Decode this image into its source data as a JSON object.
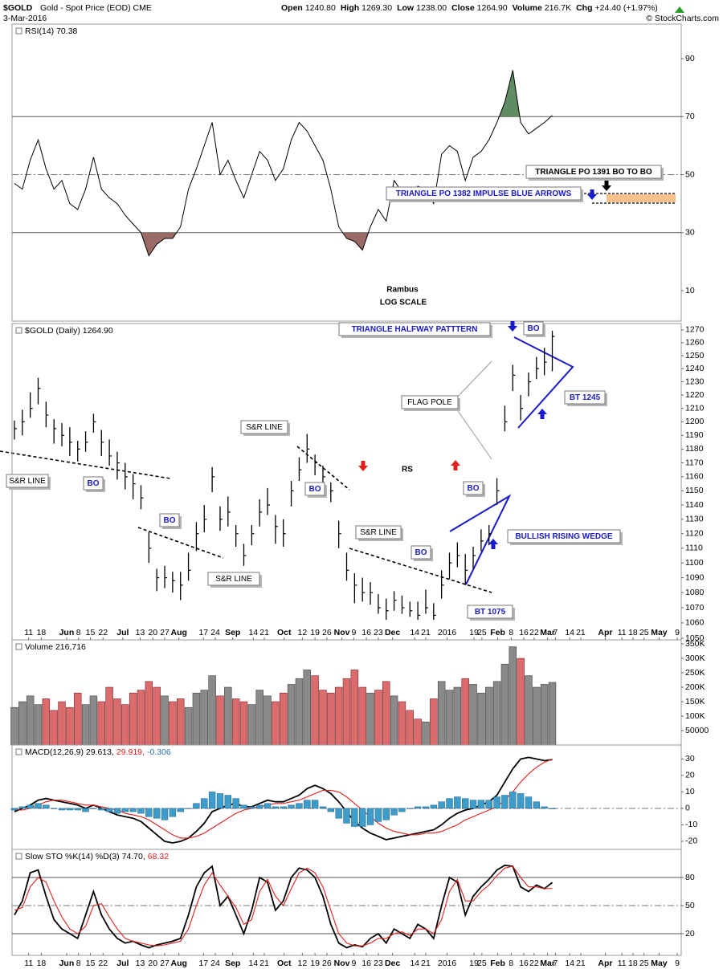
{
  "header": {
    "symbol": "$GOLD",
    "name": "Gold - Spot Price (EOD) CME",
    "date": "3-Mar-2016",
    "source": "© StockCharts.com",
    "quote": [
      {
        "label": "Open",
        "value": "1240.80"
      },
      {
        "label": "High",
        "value": "1269.30"
      },
      {
        "label": "Low",
        "value": "1238.00"
      },
      {
        "label": "Close",
        "value": "1264.90"
      },
      {
        "label": "Volume",
        "value": "216.7K"
      },
      {
        "label": "Chg",
        "value": "+24.40 (+1.97%)"
      }
    ]
  },
  "x_axis": {
    "xlim": [
      -0.3,
      84.3
    ],
    "xticks": [
      {
        "value": 1.8,
        "label": "11"
      },
      {
        "value": 3.4,
        "label": "18"
      },
      {
        "value": 6.6,
        "label": "Jun"
      },
      {
        "value": 8.1,
        "label": "8"
      },
      {
        "value": 9.6,
        "label": "15"
      },
      {
        "value": 11.2,
        "label": "22"
      },
      {
        "value": 13.7,
        "label": "Jul"
      },
      {
        "value": 15.9,
        "label": "13"
      },
      {
        "value": 17.5,
        "label": "20"
      },
      {
        "value": 19,
        "label": "27"
      },
      {
        "value": 20.8,
        "label": "Aug"
      },
      {
        "value": 23.9,
        "label": "17"
      },
      {
        "value": 25.4,
        "label": "24"
      },
      {
        "value": 27.6,
        "label": "Sep"
      },
      {
        "value": 30.2,
        "label": "14"
      },
      {
        "value": 31.6,
        "label": "21"
      },
      {
        "value": 34.1,
        "label": "Oct"
      },
      {
        "value": 36.4,
        "label": "12"
      },
      {
        "value": 38,
        "label": "19"
      },
      {
        "value": 39.5,
        "label": "26"
      },
      {
        "value": 41.4,
        "label": "Nov"
      },
      {
        "value": 42.9,
        "label": "9"
      },
      {
        "value": 44.5,
        "label": "16"
      },
      {
        "value": 46,
        "label": "23"
      },
      {
        "value": 47.8,
        "label": "Dec"
      },
      {
        "value": 50.6,
        "label": "14"
      },
      {
        "value": 52,
        "label": "21"
      },
      {
        "value": 54.7,
        "label": "2016"
      },
      {
        "value": 58.1,
        "label": "19"
      },
      {
        "value": 59.1,
        "label": "25"
      },
      {
        "value": 61.1,
        "label": "Feb"
      },
      {
        "value": 62.8,
        "label": "8"
      },
      {
        "value": 64.4,
        "label": "16"
      },
      {
        "value": 65.7,
        "label": "22"
      },
      {
        "value": 67.4,
        "label": "Mar"
      },
      {
        "value": 68.4,
        "label": "7"
      },
      {
        "value": 70.2,
        "label": "14"
      },
      {
        "value": 71.6,
        "label": "21"
      },
      {
        "value": 74.7,
        "label": "Apr"
      },
      {
        "value": 76.8,
        "label": "11"
      },
      {
        "value": 78.2,
        "label": "18"
      },
      {
        "value": 79.6,
        "label": "25"
      },
      {
        "value": 81.5,
        "label": "May"
      },
      {
        "value": 83.8,
        "label": "9"
      }
    ]
  },
  "chart_data": [
    {
      "type": "line",
      "label": "RSI(14) 70.38",
      "ylim": [
        -0.5,
        101.9
      ],
      "yticks": [
        10,
        30,
        50,
        70,
        90
      ],
      "grid_styles": [
        "none",
        "solid",
        "dashed",
        "solid",
        "none"
      ],
      "overbought": 70,
      "oversold": 30,
      "overbought_color": "#5f8c62",
      "oversold_color": "#9a6a66",
      "series": [
        {
          "color": "#000000",
          "values": [
            47,
            45,
            55,
            62,
            52,
            45,
            48,
            40,
            38,
            45,
            56,
            45,
            42,
            40,
            36,
            33,
            30,
            22,
            26,
            28,
            28,
            32,
            45,
            52,
            60,
            68,
            50,
            55,
            48,
            42,
            50,
            58,
            55,
            48,
            52,
            62,
            68,
            65,
            60,
            55,
            45,
            32,
            28,
            27,
            24,
            32,
            38,
            34,
            48,
            44,
            42,
            46,
            45,
            40,
            57,
            60,
            58,
            48,
            56,
            58,
            62,
            68,
            75,
            86,
            68,
            64,
            66,
            68,
            70.38
          ]
        }
      ],
      "annotations": [
        "Rambus",
        "LOG SCALE",
        "TRIANGLE PO 1391 BO TO BO",
        "TRIANGLE PO 1382 IMPULSE BLUE ARROWS"
      ]
    },
    {
      "type": "ohlc",
      "label": "$GOLD (Daily) 1264.90",
      "log": true,
      "ylim": [
        1049,
        1275
      ],
      "yticks": [
        1050,
        1060,
        1070,
        1080,
        1090,
        1100,
        1110,
        1120,
        1130,
        1140,
        1150,
        1160,
        1170,
        1180,
        1190,
        1200,
        1210,
        1220,
        1230,
        1240,
        1250,
        1260,
        1270
      ],
      "color": "#000000",
      "high": [
        1201,
        1209,
        1222,
        1233,
        1215,
        1202,
        1199,
        1196,
        1186,
        1193,
        1206,
        1194,
        1187,
        1178,
        1170,
        1162,
        1154,
        1121,
        1096,
        1098,
        1094,
        1094,
        1107,
        1128,
        1140,
        1167,
        1139,
        1146,
        1126,
        1113,
        1126,
        1144,
        1152,
        1133,
        1130,
        1157,
        1174,
        1191,
        1176,
        1168,
        1156,
        1129,
        1107,
        1093,
        1090,
        1087,
        1079,
        1076,
        1081,
        1078,
        1074,
        1074,
        1082,
        1073,
        1095,
        1107,
        1114,
        1106,
        1111,
        1123,
        1126,
        1159,
        1212,
        1243,
        1220,
        1237,
        1249,
        1256,
        1269.3
      ],
      "low": [
        1187,
        1190,
        1203,
        1213,
        1196,
        1184,
        1182,
        1175,
        1171,
        1178,
        1192,
        1175,
        1168,
        1158,
        1151,
        1144,
        1137,
        1100,
        1081,
        1083,
        1080,
        1075,
        1088,
        1108,
        1121,
        1149,
        1122,
        1125,
        1111,
        1098,
        1112,
        1125,
        1133,
        1113,
        1111,
        1139,
        1157,
        1170,
        1161,
        1153,
        1142,
        1110,
        1088,
        1073,
        1074,
        1072,
        1066,
        1062,
        1068,
        1066,
        1064,
        1062,
        1066,
        1062,
        1076,
        1089,
        1097,
        1085,
        1096,
        1108,
        1112,
        1140,
        1193,
        1223,
        1201,
        1219,
        1232,
        1235,
        1238
      ],
      "close": [
        1195,
        1200,
        1210,
        1225,
        1205,
        1195,
        1190,
        1185,
        1180,
        1185,
        1200,
        1185,
        1175,
        1170,
        1160,
        1155,
        1145,
        1110,
        1090,
        1090,
        1088,
        1085,
        1095,
        1120,
        1130,
        1160,
        1130,
        1135,
        1120,
        1105,
        1120,
        1135,
        1140,
        1125,
        1120,
        1150,
        1165,
        1180,
        1170,
        1160,
        1150,
        1120,
        1095,
        1085,
        1080,
        1080,
        1070,
        1068,
        1075,
        1070,
        1068,
        1065,
        1070,
        1065,
        1085,
        1100,
        1105,
        1095,
        1105,
        1115,
        1120,
        1150,
        1200,
        1235,
        1210,
        1230,
        1240,
        1245,
        1264.9
      ],
      "annotations": [
        "S&R LINE",
        "S&R LINE",
        "S&R LINE",
        "S&R LINE",
        "BO",
        "BO",
        "BO",
        "BO",
        "BO",
        "BO",
        "RS",
        "FLAG POLE",
        "TRIANGLE HALFWAY PATTTERN",
        "BT 1245",
        "BULLISH RISING WEDGE",
        "BT 1075"
      ]
    },
    {
      "type": "bar",
      "label": "Volume 216,716",
      "ylim": [
        0,
        364000
      ],
      "yticks": [
        {
          "value": 350000,
          "label": "350K"
        },
        {
          "value": 300000,
          "label": "300K"
        },
        {
          "value": 250000,
          "label": "250K"
        },
        {
          "value": 200000,
          "label": "200K"
        },
        {
          "value": 150000,
          "label": "150K"
        },
        {
          "value": 100000,
          "label": "100K"
        },
        50000
      ],
      "up_color": "#8a8a8a",
      "down_color": "#dc6b6e",
      "values": [
        130000,
        150000,
        170000,
        140000,
        160000,
        120000,
        150000,
        130000,
        180000,
        140000,
        170000,
        150000,
        200000,
        160000,
        140000,
        180000,
        190000,
        220000,
        200000,
        170000,
        150000,
        160000,
        130000,
        180000,
        190000,
        240000,
        170000,
        200000,
        160000,
        150000,
        140000,
        190000,
        170000,
        150000,
        180000,
        210000,
        230000,
        260000,
        240000,
        190000,
        180000,
        200000,
        230000,
        260000,
        200000,
        180000,
        190000,
        220000,
        170000,
        150000,
        120000,
        90000,
        80000,
        160000,
        220000,
        190000,
        200000,
        230000,
        210000,
        180000,
        200000,
        220000,
        280000,
        340000,
        300000,
        240000,
        200000,
        210000,
        216716
      ]
    },
    {
      "type": "line",
      "ylim": [
        -24.9,
        38.5
      ],
      "yticks": [
        30,
        20,
        10,
        0,
        -10,
        -20
      ],
      "grid_styles": [
        "none",
        "none",
        "none",
        "dashed",
        "none",
        "none"
      ],
      "series": [
        {
          "name": "MACD(12,26,9) 29.613,",
          "color": "#000000",
          "values": [
            -2,
            0,
            2,
            5,
            6,
            5,
            4,
            3,
            2,
            0,
            2,
            0,
            -2,
            -4,
            -5,
            -6,
            -8,
            -12,
            -16,
            -20,
            -21,
            -20,
            -18,
            -14,
            -9,
            -2,
            0,
            2,
            3,
            1,
            1,
            3,
            5,
            4,
            4,
            6,
            8,
            12,
            14,
            12,
            9,
            4,
            -2,
            -8,
            -12,
            -15,
            -17,
            -19,
            -18,
            -17,
            -16,
            -15,
            -14,
            -13,
            -10,
            -6,
            -3,
            -1,
            0,
            2,
            4,
            8,
            16,
            24,
            30,
            31,
            30,
            29,
            29.613
          ]
        },
        {
          "name": "29.919,",
          "color": "#e0201b",
          "values": [
            -1,
            -1,
            0,
            2,
            4,
            5,
            5,
            4,
            3,
            2,
            2,
            1,
            0,
            -1,
            -3,
            -4,
            -5,
            -7,
            -10,
            -13,
            -16,
            -18,
            -18,
            -17,
            -15,
            -12,
            -9,
            -6,
            -3,
            -1,
            0,
            1,
            2,
            3,
            3,
            4,
            5,
            7,
            9,
            11,
            11,
            10,
            7,
            3,
            -1,
            -5,
            -9,
            -12,
            -14,
            -15,
            -16,
            -16,
            -15,
            -15,
            -14,
            -12,
            -10,
            -7,
            -5,
            -3,
            -1,
            1,
            5,
            10,
            16,
            21,
            25,
            28,
            29.919
          ]
        },
        {
          "name": "-0.306",
          "color": "#3d9cc9",
          "style": "histogram",
          "values": [
            -1,
            1,
            2,
            3,
            2,
            0,
            -1,
            -1,
            -1,
            -2,
            0,
            -1,
            -2,
            -3,
            -2,
            -2,
            -3,
            -5,
            -6,
            -7,
            -5,
            -2,
            0,
            3,
            6,
            10,
            9,
            8,
            6,
            2,
            1,
            2,
            3,
            1,
            1,
            2,
            3,
            5,
            5,
            1,
            -2,
            -6,
            -9,
            -11,
            -11,
            -10,
            -8,
            -7,
            -4,
            -2,
            0,
            1,
            1,
            2,
            4,
            6,
            7,
            6,
            5,
            5,
            5,
            7,
            8,
            10,
            9,
            7,
            4,
            1,
            -0.306
          ]
        }
      ]
    },
    {
      "type": "line",
      "ylim": [
        -3.1,
        110
      ],
      "yticks": [
        80,
        50,
        20
      ],
      "grid_styles": [
        "solid",
        "dashed",
        "solid"
      ],
      "series": [
        {
          "name": "Slow STO %K(14) %D(3) 74.70,",
          "color": "#000000",
          "values": [
            40,
            55,
            85,
            88,
            60,
            35,
            25,
            20,
            15,
            40,
            65,
            40,
            25,
            15,
            10,
            12,
            8,
            5,
            8,
            10,
            12,
            15,
            40,
            70,
            85,
            92,
            50,
            60,
            40,
            20,
            45,
            80,
            75,
            45,
            55,
            80,
            90,
            88,
            80,
            60,
            30,
            10,
            5,
            8,
            6,
            15,
            20,
            10,
            25,
            20,
            15,
            30,
            25,
            15,
            50,
            80,
            75,
            40,
            60,
            70,
            78,
            88,
            93,
            92,
            70,
            65,
            72,
            68,
            74.7
          ]
        },
        {
          "name": "68.32",
          "color": "#e0201b",
          "values": [
            45,
            48,
            70,
            80,
            75,
            55,
            38,
            25,
            20,
            28,
            50,
            52,
            38,
            25,
            15,
            12,
            10,
            8,
            7,
            8,
            10,
            12,
            25,
            50,
            72,
            85,
            72,
            60,
            48,
            30,
            35,
            65,
            78,
            60,
            50,
            68,
            85,
            90,
            85,
            70,
            45,
            20,
            10,
            7,
            7,
            10,
            15,
            15,
            20,
            22,
            18,
            25,
            25,
            20,
            35,
            65,
            78,
            55,
            55,
            65,
            72,
            82,
            90,
            92,
            80,
            70,
            70,
            68,
            68.32
          ]
        }
      ]
    }
  ]
}
